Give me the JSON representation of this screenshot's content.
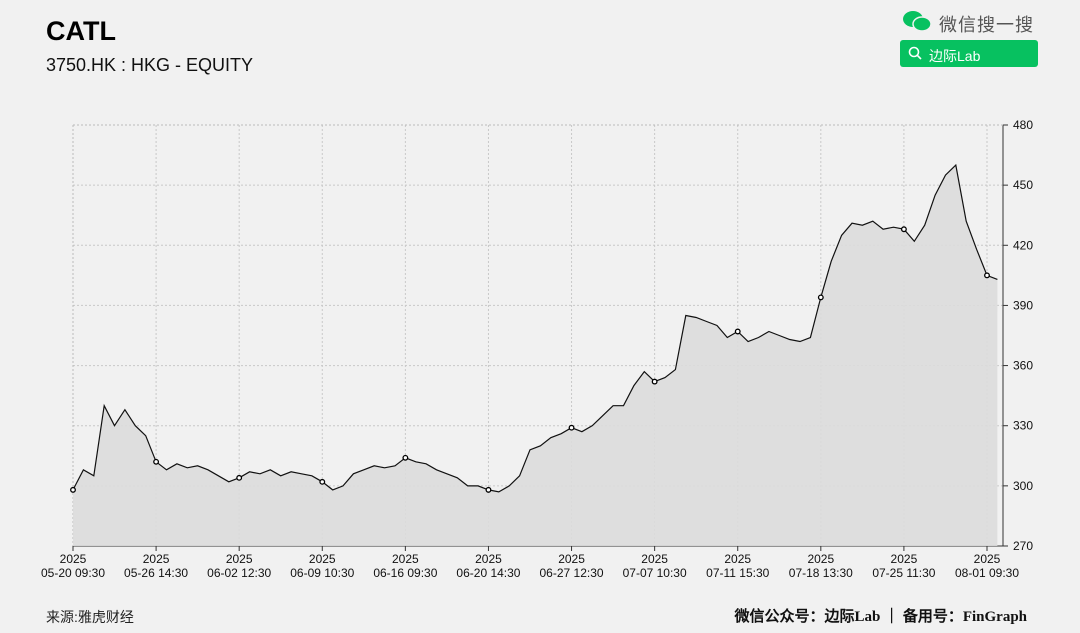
{
  "header": {
    "title": "CATL",
    "subtitle": "3750.HK : HKG - EQUITY"
  },
  "search_widget": {
    "brand": "微信搜一搜",
    "query": "边际Lab"
  },
  "footer": {
    "source": "来源:雅虎财经",
    "credit": "微信公众号：边际Lab ｜ 备用号：FinGraph"
  },
  "chart_data": {
    "type": "area",
    "categories": [
      "2025 05-20 09:30",
      null,
      null,
      null,
      null,
      null,
      null,
      null,
      "2025 05-26 14:30",
      null,
      null,
      null,
      null,
      null,
      null,
      null,
      "2025 06-02 12:30",
      null,
      null,
      null,
      null,
      null,
      null,
      null,
      "2025 06-09 10:30",
      null,
      null,
      null,
      null,
      null,
      null,
      null,
      "2025 06-16 09:30",
      null,
      null,
      null,
      null,
      null,
      null,
      null,
      "2025 06-20 14:30",
      null,
      null,
      null,
      null,
      null,
      null,
      null,
      "2025 06-27 12:30",
      null,
      null,
      null,
      null,
      null,
      null,
      null,
      "2025 07-07 10:30",
      null,
      null,
      null,
      null,
      null,
      null,
      null,
      "2025 07-11 15:30",
      null,
      null,
      null,
      null,
      null,
      null,
      null,
      "2025 07-18 13:30",
      null,
      null,
      null,
      null,
      null,
      null,
      null,
      "2025 07-25 11:30",
      null,
      null,
      null,
      null,
      null,
      null,
      null,
      "2025 08-01 09:30",
      null
    ],
    "values": [
      298,
      308,
      305,
      340,
      330,
      338,
      330,
      325,
      312,
      308,
      311,
      309,
      310,
      308,
      305,
      302,
      304,
      307,
      306,
      308,
      305,
      307,
      306,
      305,
      302,
      298,
      300,
      306,
      308,
      310,
      309,
      310,
      314,
      312,
      311,
      308,
      306,
      304,
      300,
      300,
      298,
      297,
      300,
      305,
      318,
      320,
      324,
      326,
      329,
      327,
      330,
      335,
      340,
      340,
      350,
      357,
      352,
      354,
      358,
      385,
      384,
      382,
      380,
      374,
      377,
      372,
      374,
      377,
      375,
      373,
      372,
      374,
      394,
      412,
      425,
      431,
      430,
      432,
      428,
      429,
      428,
      422,
      430,
      445,
      455,
      460,
      432,
      418,
      405,
      403
    ],
    "color": "#111111",
    "fill": "#dcdcdc",
    "markers": true,
    "ylim": [
      270,
      480
    ],
    "yticks": [
      270,
      300,
      330,
      360,
      390,
      420,
      450,
      480
    ],
    "grid": true
  }
}
